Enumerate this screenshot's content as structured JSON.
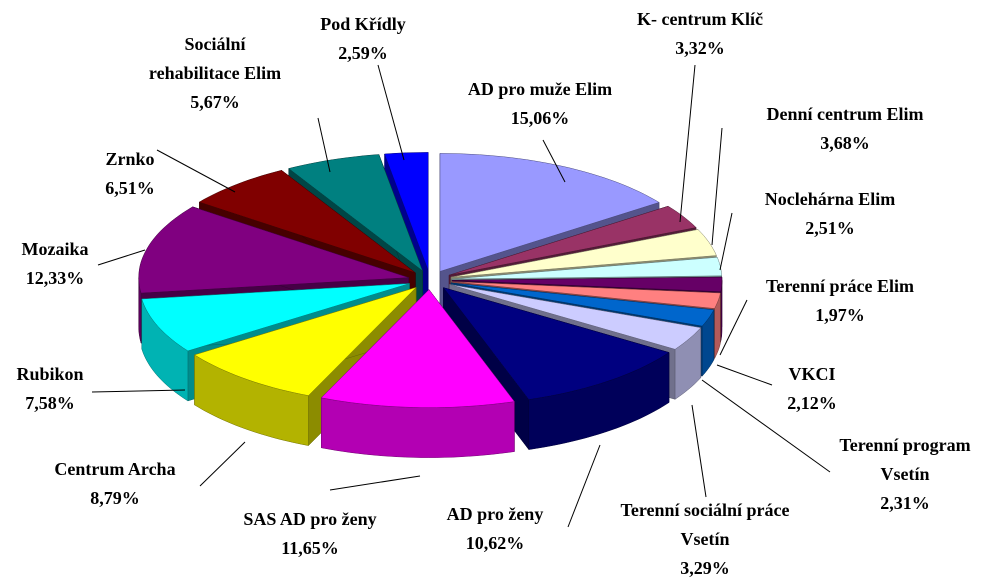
{
  "chart_data": {
    "type": "pie3d",
    "categories": [
      "AD pro muže Elim",
      "K- centrum Klíč",
      "Denní centrum Elim",
      "Noclehárna Elim",
      "Terenní práce Elim",
      "VKCI",
      "Terenní program Vsetín",
      "Terenní sociální práce Vsetín",
      "AD pro ženy",
      "SAS AD pro ženy",
      "Centrum Archa",
      "Rubikon",
      "Mozaika",
      "Zrnko",
      "Sociální rehabilitace Elim",
      "Pod Křídly"
    ],
    "values": [
      15.06,
      3.32,
      3.68,
      2.51,
      1.97,
      2.12,
      2.31,
      3.29,
      10.62,
      11.65,
      8.79,
      7.58,
      12.33,
      6.51,
      5.67,
      2.59
    ],
    "value_labels": [
      "15,06%",
      "3,32%",
      "3,68%",
      "2,51%",
      "1,97%",
      "2,12%",
      "2,31%",
      "3,29%",
      "10,62%",
      "11,65%",
      "8,79%",
      "7,58%",
      "12,33%",
      "6,51%",
      "5,67%",
      "2,59%"
    ],
    "colors": [
      "#9999ff",
      "#993366",
      "#ffffcc",
      "#ccffff",
      "#660066",
      "#ff8080",
      "#0066cc",
      "#ccccff",
      "#000080",
      "#ff00ff",
      "#ffff00",
      "#00ffff",
      "#800080",
      "#800000",
      "#008080",
      "#0000ff"
    ]
  }
}
